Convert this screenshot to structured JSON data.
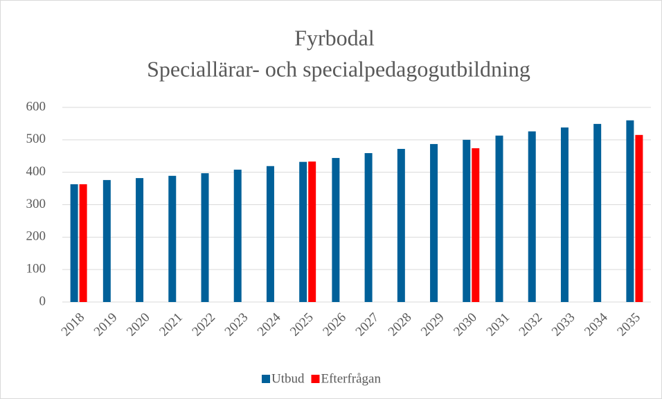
{
  "chart_data": {
    "type": "bar",
    "title": "Fyrbodal",
    "subtitle": "Speciallärar- och specialpedagogutbildning",
    "categories": [
      "2018",
      "2019",
      "2020",
      "2021",
      "2022",
      "2023",
      "2024",
      "2025",
      "2026",
      "2027",
      "2028",
      "2029",
      "2030",
      "2031",
      "2032",
      "2033",
      "2034",
      "2035"
    ],
    "series": [
      {
        "name": "Utbud",
        "color": "#006099",
        "values": [
          363,
          376,
          382,
          389,
          397,
          408,
          419,
          432,
          444,
          459,
          472,
          487,
          500,
          513,
          526,
          538,
          549,
          560
        ]
      },
      {
        "name": "Efterfrågan",
        "color": "#ff0000",
        "values": [
          363,
          null,
          null,
          null,
          null,
          null,
          null,
          433,
          null,
          null,
          null,
          null,
          474,
          null,
          null,
          null,
          null,
          515
        ]
      }
    ],
    "ylim": [
      0,
      600
    ],
    "yticks": [
      0,
      100,
      200,
      300,
      400,
      500,
      600
    ],
    "grid": true,
    "legend": "bottom"
  }
}
